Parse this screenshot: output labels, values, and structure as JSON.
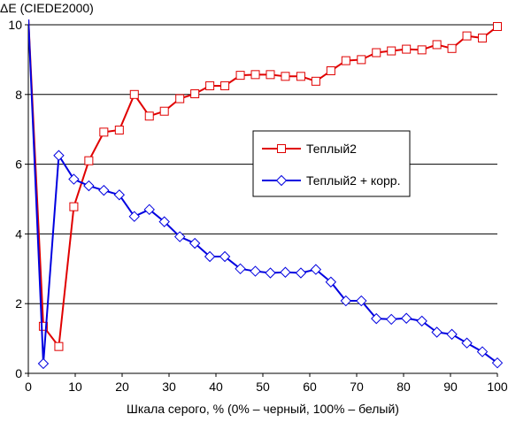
{
  "chart_data": {
    "type": "line",
    "ylabel": "ΔE (CIEDE2000)",
    "xlabel": "Шкала серого, % (0% – черный, 100% – белый)",
    "xlim": [
      0,
      100
    ],
    "ylim": [
      0,
      10
    ],
    "x_ticks": [
      0,
      10,
      20,
      30,
      40,
      50,
      60,
      70,
      80,
      90,
      100
    ],
    "y_ticks": [
      0,
      2,
      4,
      6,
      8,
      10
    ],
    "grid": "horizontal",
    "legend_position": "center-right",
    "series": [
      {
        "name": "Теплый2",
        "color": "#e00000",
        "marker": "square",
        "x": [
          0,
          3.2,
          6.5,
          9.7,
          12.9,
          16.1,
          19.4,
          22.6,
          25.8,
          29.0,
          32.3,
          35.5,
          38.7,
          41.9,
          45.2,
          48.4,
          51.6,
          54.8,
          58.1,
          61.3,
          64.5,
          67.7,
          71.0,
          74.2,
          77.4,
          80.6,
          83.9,
          87.1,
          90.3,
          93.5,
          96.8,
          100
        ],
        "values": [
          10.2,
          1.35,
          0.77,
          4.78,
          6.1,
          6.92,
          6.98,
          8.0,
          7.38,
          7.52,
          7.88,
          8.02,
          8.25,
          8.25,
          8.55,
          8.57,
          8.57,
          8.52,
          8.52,
          8.38,
          8.68,
          8.97,
          9.0,
          9.2,
          9.25,
          9.3,
          9.28,
          9.43,
          9.32,
          9.68,
          9.62,
          9.95
        ]
      },
      {
        "name": "Теплый2 + корр.",
        "color": "#0000e0",
        "marker": "diamond",
        "x": [
          0,
          3.2,
          6.5,
          9.7,
          12.9,
          16.1,
          19.4,
          22.6,
          25.8,
          29.0,
          32.3,
          35.5,
          38.7,
          41.9,
          45.2,
          48.4,
          51.6,
          54.8,
          58.1,
          61.3,
          64.5,
          67.7,
          71.0,
          74.2,
          77.4,
          80.6,
          83.9,
          87.1,
          90.3,
          93.5,
          96.8,
          100
        ],
        "values": [
          10.2,
          0.28,
          6.25,
          5.57,
          5.38,
          5.25,
          5.12,
          4.5,
          4.7,
          4.35,
          3.92,
          3.73,
          3.35,
          3.35,
          3.0,
          2.93,
          2.88,
          2.9,
          2.88,
          2.98,
          2.62,
          2.08,
          2.08,
          1.57,
          1.55,
          1.58,
          1.5,
          1.18,
          1.12,
          0.87,
          0.62,
          0.3
        ]
      }
    ]
  }
}
